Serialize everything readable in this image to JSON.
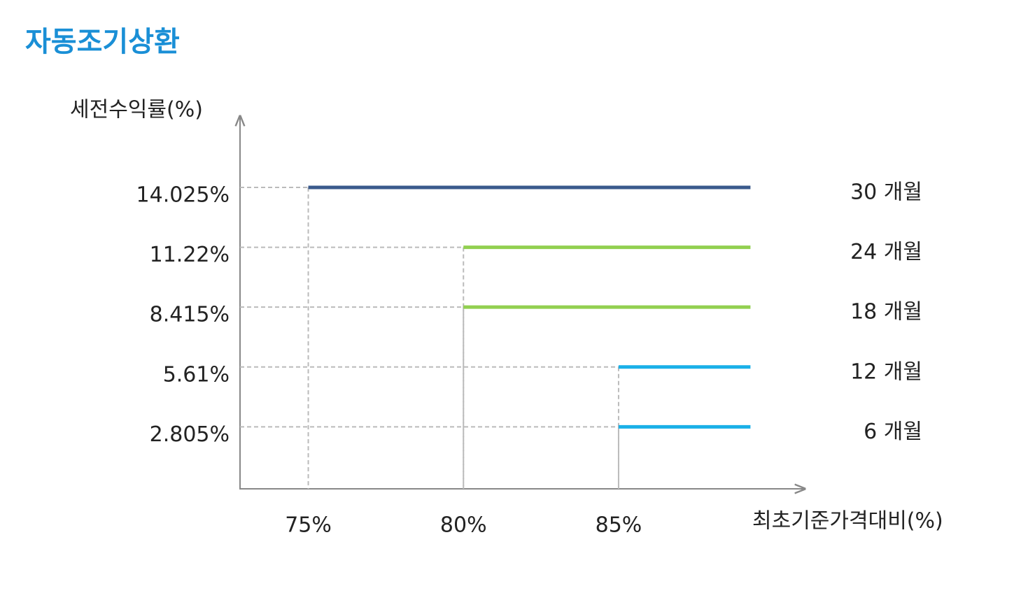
{
  "chart_data": {
    "type": "segments",
    "title": "자동조기상환",
    "y_label": "세전수익률(%)",
    "x_label": "최초기준가격대비(%)",
    "xlim": [
      72.8,
      91
    ],
    "ylim": [
      -0.1,
      17.4
    ],
    "xticks": [
      {
        "value": 75,
        "label": "75%"
      },
      {
        "value": 80,
        "label": "80%"
      },
      {
        "value": 85,
        "label": "85%"
      }
    ],
    "yticks": [
      {
        "value": 2.805,
        "label": "2.805%"
      },
      {
        "value": 5.61,
        "label": "5.61%"
      },
      {
        "value": 8.415,
        "label": "8.415%"
      },
      {
        "value": 11.22,
        "label": "11.22%"
      },
      {
        "value": 14.025,
        "label": "14.025%"
      }
    ],
    "series": [
      {
        "name": "30 개월",
        "color": "#3a5a8c",
        "x": [
          75,
          89.25
        ],
        "values": [
          14.025,
          14.025
        ]
      },
      {
        "name": "24 개월",
        "color": "#92d050",
        "x": [
          80,
          89.25
        ],
        "values": [
          11.22,
          11.22
        ]
      },
      {
        "name": "18 개월",
        "color": "#92d050",
        "x": [
          80,
          89.25
        ],
        "values": [
          8.415,
          8.415
        ]
      },
      {
        "name": "12 개월",
        "color": "#1ab0e8",
        "x": [
          85,
          89.25
        ],
        "values": [
          5.61,
          5.61
        ]
      },
      {
        "name": "6 개월",
        "color": "#1ab0e8",
        "x": [
          85,
          89.25
        ],
        "values": [
          2.805,
          2.805
        ]
      }
    ]
  }
}
